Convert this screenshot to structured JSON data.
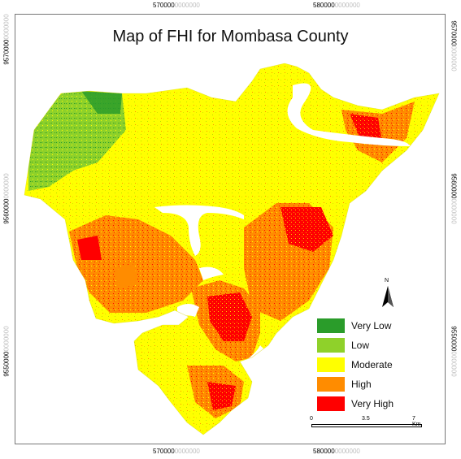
{
  "map": {
    "title": "Map of FHI for Mombasa County",
    "grid_labels": {
      "top_x1": "570000",
      "top_x2": "580000",
      "bottom_x1": "570000",
      "bottom_x2": "580000",
      "left_y1": "9570000",
      "left_y2": "9560000",
      "left_y3": "9550000",
      "right_y1": "9570000",
      "right_y2": "9560000",
      "right_y3": "9550000",
      "faint_suffix": "0000000"
    },
    "legend": [
      {
        "label": "Very Low",
        "color": "#2a9c2a"
      },
      {
        "label": "Low",
        "color": "#8fd12a"
      },
      {
        "label": "Moderate",
        "color": "#ffff00"
      },
      {
        "label": "High",
        "color": "#ff8c00"
      },
      {
        "label": "Very High",
        "color": "#ff0000"
      }
    ],
    "north_arrow": {
      "label": "N"
    },
    "scale_bar": {
      "ticks": [
        "0",
        "3.5",
        "7 Km"
      ]
    },
    "colors": {
      "very_low": "#2a9c2a",
      "low": "#8fd12a",
      "moderate": "#ffff00",
      "high": "#ff8c00",
      "very_high": "#ff0000",
      "water": "#ffffff"
    }
  }
}
